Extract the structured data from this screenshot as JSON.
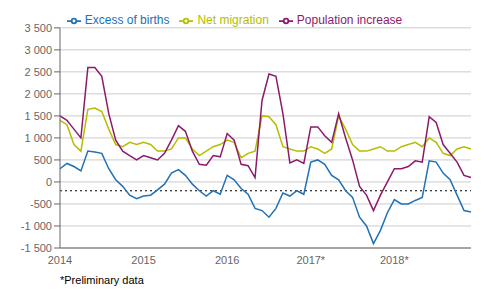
{
  "chart_data": {
    "type": "line",
    "footnote": "*Preliminary data",
    "categories": [
      "2014",
      null,
      null,
      null,
      null,
      null,
      null,
      null,
      null,
      null,
      null,
      null,
      "2015",
      null,
      null,
      null,
      null,
      null,
      null,
      null,
      null,
      null,
      null,
      null,
      "2016",
      null,
      null,
      null,
      null,
      null,
      null,
      null,
      null,
      null,
      null,
      null,
      "2017*",
      null,
      null,
      null,
      null,
      null,
      null,
      null,
      null,
      null,
      null,
      null,
      "2018*",
      null,
      null,
      null,
      null,
      null,
      null,
      null,
      null,
      null,
      null,
      null
    ],
    "series": [
      {
        "name": "Excess of births",
        "color": "#2171b5",
        "values": [
          300,
          420,
          350,
          250,
          700,
          680,
          650,
          300,
          50,
          -100,
          -300,
          -380,
          -320,
          -300,
          -180,
          -50,
          200,
          280,
          150,
          -50,
          -200,
          -320,
          -200,
          -280,
          150,
          50,
          -150,
          -280,
          -600,
          -650,
          -800,
          -600,
          -250,
          -320,
          -200,
          -280,
          450,
          500,
          400,
          150,
          50,
          -200,
          -350,
          -800,
          -1000,
          -1400,
          -1100,
          -700,
          -400,
          -500,
          -500,
          -420,
          -350,
          480,
          450,
          200,
          50,
          -300,
          -650,
          -680
        ]
      },
      {
        "name": "Net migration",
        "color": "#b5bd00",
        "values": [
          1400,
          1300,
          850,
          700,
          1650,
          1680,
          1600,
          1200,
          850,
          800,
          900,
          850,
          900,
          850,
          700,
          700,
          750,
          1000,
          1000,
          750,
          600,
          700,
          800,
          850,
          950,
          900,
          550,
          650,
          700,
          1500,
          1480,
          1300,
          800,
          750,
          700,
          700,
          800,
          750,
          650,
          750,
          1500,
          1200,
          850,
          700,
          700,
          750,
          800,
          700,
          700,
          800,
          850,
          900,
          800,
          1000,
          900,
          650,
          600,
          750,
          800,
          750
        ]
      },
      {
        "name": "Population increase",
        "color": "#8b1a6b",
        "values": [
          1500,
          1400,
          1200,
          1000,
          2600,
          2600,
          2400,
          1550,
          950,
          700,
          600,
          500,
          600,
          550,
          500,
          650,
          950,
          1280,
          1150,
          700,
          400,
          380,
          600,
          570,
          1100,
          950,
          400,
          370,
          100,
          1850,
          2450,
          2400,
          1550,
          430,
          500,
          420,
          1250,
          1250,
          1050,
          900,
          1550,
          1000,
          500,
          -100,
          -300,
          -650,
          -300,
          0,
          300,
          300,
          350,
          480,
          450,
          1480,
          1350,
          850,
          650,
          450,
          150,
          100
        ]
      }
    ],
    "ylim": [
      -1500,
      3500
    ],
    "yticks": [
      {
        "value": -1500,
        "label": "-1 500"
      },
      {
        "value": -1000,
        "label": "-1 000"
      },
      -500,
      0,
      500,
      {
        "value": 1000,
        "label": "1 000"
      },
      {
        "value": 1500,
        "label": "1 500"
      },
      {
        "value": 2000,
        "label": "2 000"
      },
      {
        "value": 2500,
        "label": "2 500"
      },
      {
        "value": 3000,
        "label": "3 000"
      },
      {
        "value": 3500,
        "label": "3 500"
      }
    ],
    "hline": -200,
    "grid": "y",
    "legend": "top"
  }
}
